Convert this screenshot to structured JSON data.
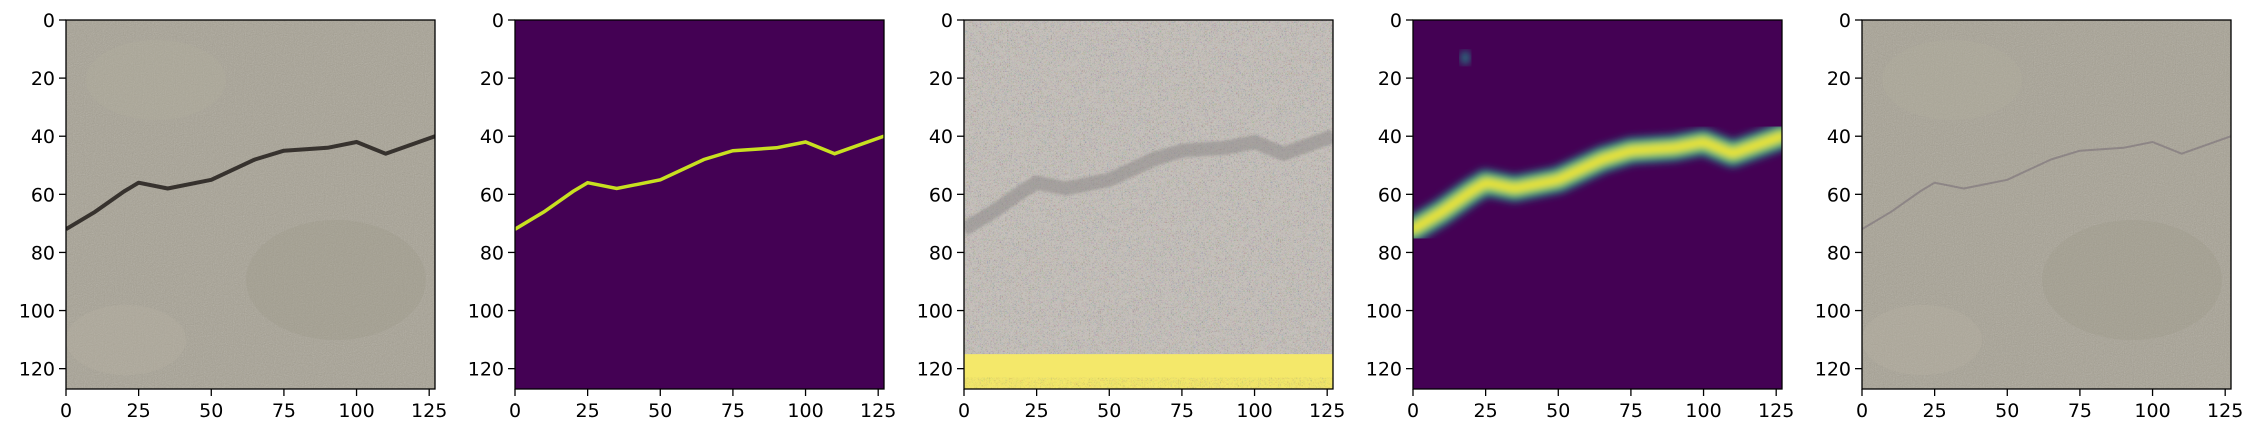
{
  "figure": {
    "panel_count": 5,
    "panels": [
      {
        "name": "panel-1",
        "content": "input-photo",
        "x_ticks": [
          "0",
          "25",
          "50",
          "75",
          "100",
          "125"
        ],
        "y_ticks": [
          "0",
          "20",
          "40",
          "60",
          "80",
          "100",
          "120"
        ]
      },
      {
        "name": "panel-2",
        "content": "ground-truth-mask",
        "x_ticks": [
          "0",
          "25",
          "50",
          "75",
          "100",
          "125"
        ],
        "y_ticks": [
          "0",
          "20",
          "40",
          "60",
          "80",
          "100",
          "120"
        ]
      },
      {
        "name": "panel-3",
        "content": "noisy-reconstruction",
        "x_ticks": [
          "0",
          "25",
          "50",
          "75",
          "100",
          "125"
        ],
        "y_ticks": [
          "0",
          "20",
          "40",
          "60",
          "80",
          "100",
          "120"
        ]
      },
      {
        "name": "panel-4",
        "content": "predicted-heatmap",
        "x_ticks": [
          "0",
          "25",
          "50",
          "75",
          "100",
          "125"
        ],
        "y_ticks": [
          "0",
          "20",
          "40",
          "60",
          "80",
          "100",
          "120"
        ]
      },
      {
        "name": "panel-5",
        "content": "overlay-photo",
        "x_ticks": [
          "0",
          "25",
          "50",
          "75",
          "100",
          "125"
        ],
        "y_ticks": [
          "0",
          "20",
          "40",
          "60",
          "80",
          "100",
          "120"
        ]
      }
    ],
    "axis_range": {
      "x": [
        0,
        127
      ],
      "y": [
        0,
        127
      ]
    },
    "crack_path": [
      [
        0,
        72
      ],
      [
        10,
        66
      ],
      [
        20,
        59
      ],
      [
        25,
        56
      ],
      [
        35,
        58
      ],
      [
        50,
        55
      ],
      [
        65,
        48
      ],
      [
        75,
        45
      ],
      [
        90,
        44
      ],
      [
        100,
        42
      ],
      [
        110,
        46
      ],
      [
        127,
        40
      ]
    ],
    "colors": {
      "photo_base": "#a7a294",
      "photo_dark": "#8f8a7d",
      "mask_background": "#440154",
      "mask_line": "#c8e020",
      "heat_outer": "#21918c",
      "heat_mid": "#5ec962",
      "heat_core": "#fde725",
      "noise_base": "#c9c3bd",
      "noise_band": "#f4e86a"
    }
  }
}
